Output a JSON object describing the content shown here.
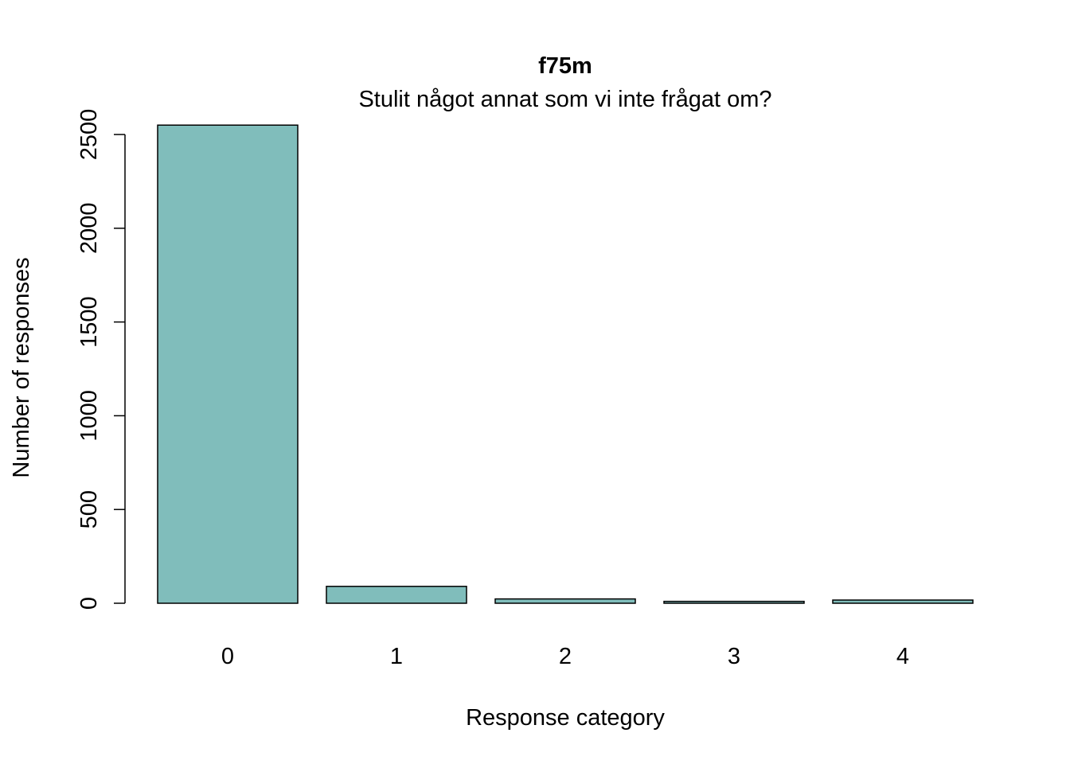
{
  "chart_data": {
    "type": "bar",
    "title": "f75m",
    "subtitle": "Stulit något annat som vi inte frågat om?",
    "xlabel": "Response category",
    "ylabel": "Number of responses",
    "categories": [
      "0",
      "1",
      "2",
      "3",
      "4"
    ],
    "values": [
      2550,
      90,
      23,
      10,
      17
    ],
    "ylim": [
      0,
      2500
    ],
    "yticks": [
      0,
      500,
      1000,
      1500,
      2000,
      2500
    ],
    "bar_color": "#80BDBB",
    "grid": false
  }
}
